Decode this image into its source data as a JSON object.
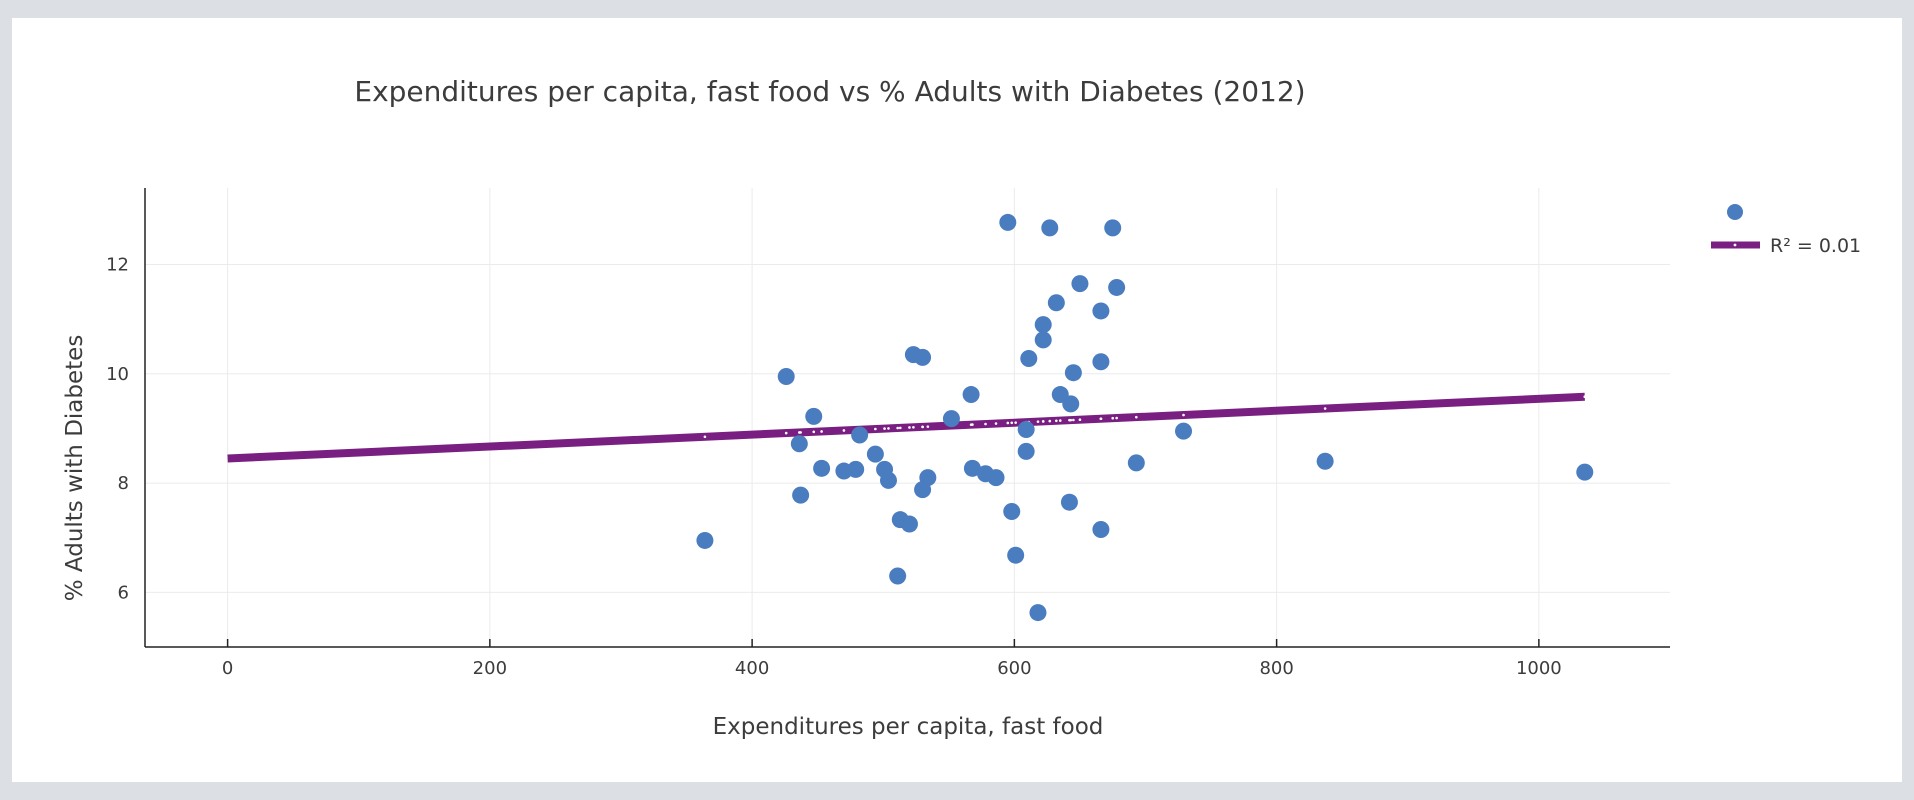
{
  "chart_data": {
    "type": "scatter",
    "title": "Expenditures per capita, fast food vs % Adults with Diabetes (2012)",
    "xlabel": "Expenditures per capita, fast food",
    "ylabel": "% Adults with Diabetes",
    "xlim": [
      -63,
      1100
    ],
    "ylim": [
      5,
      13.4
    ],
    "xticks": [
      0,
      200,
      400,
      600,
      800,
      1000
    ],
    "yticks": [
      6,
      8,
      10,
      12
    ],
    "grid": true,
    "legend_position": "top-right",
    "series": [
      {
        "name": "",
        "type": "scatter",
        "color": "#4a7cc0",
        "points": [
          [
            364,
            6.95
          ],
          [
            426,
            9.95
          ],
          [
            436,
            8.72
          ],
          [
            437,
            7.78
          ],
          [
            447,
            9.22
          ],
          [
            453,
            8.27
          ],
          [
            470,
            8.22
          ],
          [
            479,
            8.25
          ],
          [
            482,
            8.88
          ],
          [
            494,
            8.53
          ],
          [
            501,
            8.25
          ],
          [
            504,
            8.05
          ],
          [
            511,
            6.3
          ],
          [
            513,
            7.33
          ],
          [
            520,
            7.25
          ],
          [
            523,
            10.35
          ],
          [
            530,
            10.3
          ],
          [
            530,
            7.88
          ],
          [
            534,
            8.1
          ],
          [
            552,
            9.18
          ],
          [
            567,
            9.62
          ],
          [
            568,
            8.27
          ],
          [
            578,
            8.17
          ],
          [
            586,
            8.1
          ],
          [
            595,
            12.77
          ],
          [
            598,
            7.48
          ],
          [
            601,
            6.68
          ],
          [
            609,
            8.98
          ],
          [
            609,
            8.58
          ],
          [
            611,
            10.28
          ],
          [
            618,
            5.63
          ],
          [
            622,
            10.9
          ],
          [
            622,
            10.62
          ],
          [
            627,
            12.67
          ],
          [
            632,
            11.3
          ],
          [
            635,
            9.62
          ],
          [
            642,
            7.65
          ],
          [
            643,
            9.45
          ],
          [
            645,
            10.02
          ],
          [
            650,
            11.65
          ],
          [
            666,
            10.22
          ],
          [
            666,
            7.15
          ],
          [
            666,
            11.15
          ],
          [
            675,
            12.67
          ],
          [
            678,
            11.58
          ],
          [
            693,
            8.37
          ],
          [
            729,
            8.95
          ],
          [
            837,
            8.4
          ],
          [
            1035,
            8.2
          ]
        ]
      },
      {
        "name": "R² = 0.01",
        "type": "line",
        "color": "#7a1f82",
        "x": [
          0,
          1035
        ],
        "y": [
          8.45,
          9.58
        ]
      }
    ]
  },
  "legend": {
    "entries": [
      {
        "label": "",
        "kind": "marker"
      },
      {
        "label": "R² = 0.01",
        "kind": "line"
      }
    ]
  }
}
